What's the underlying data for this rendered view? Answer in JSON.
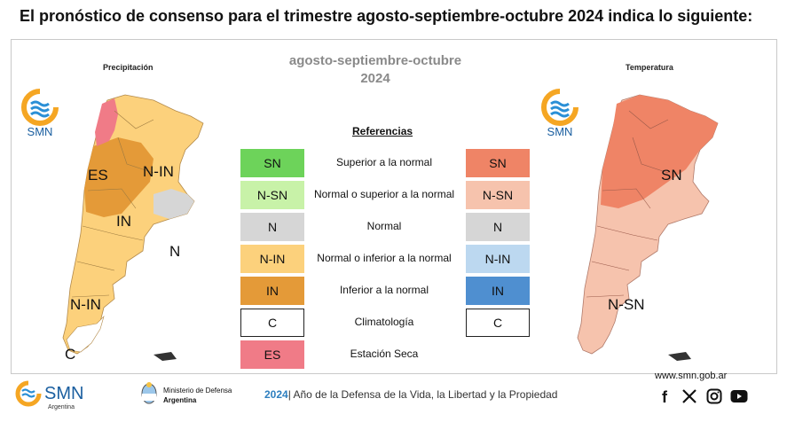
{
  "headline": "El pronóstico de consenso para el trimestre agosto-septiembre-octubre 2024 indica lo siguiente:",
  "period": {
    "line1": "agosto-septiembre-octubre",
    "line2": "2024"
  },
  "left_map": {
    "title": "Precipitación",
    "labels": [
      "ES",
      "N-IN",
      "IN",
      "N",
      "N-IN",
      "C"
    ]
  },
  "right_map": {
    "title": "Temperatura",
    "labels": [
      "SN",
      "N-SN"
    ]
  },
  "logo_text": "SMN",
  "references": {
    "title": "Referencias",
    "rows": [
      {
        "label": "Superior a la normal",
        "precip_code": "SN",
        "precip_color": "#6dd35a",
        "temp_code": "SN",
        "temp_color": "#ef8466"
      },
      {
        "label": "Normal o superior a la normal",
        "precip_code": "N-SN",
        "precip_color": "#c8f2a8",
        "temp_code": "N-SN",
        "temp_color": "#f6c3ad"
      },
      {
        "label": "Normal",
        "precip_code": "N",
        "precip_color": "#d6d6d6",
        "temp_code": "N",
        "temp_color": "#d6d6d6"
      },
      {
        "label": "Normal o inferior a la normal",
        "precip_code": "N-IN",
        "precip_color": "#fcd17c",
        "temp_code": "N-IN",
        "temp_color": "#bcd8f0"
      },
      {
        "label": "Inferior a la normal",
        "precip_code": "IN",
        "precip_color": "#e49a38",
        "temp_code": "IN",
        "temp_color": "#4f8fd0"
      },
      {
        "label": "Climatología",
        "precip_code": "C",
        "precip_color": "#ffffff",
        "temp_code": "C",
        "temp_color": "#ffffff"
      },
      {
        "label": "Estación Seca",
        "precip_code": "ES",
        "precip_color": "#f07b87"
      }
    ]
  },
  "footer": {
    "smn": "SMN",
    "smn_sub": "Argentina",
    "ministry_line1": "Ministerio de Defensa",
    "ministry_line2": "Argentina",
    "year": "2024",
    "motto": "| Año de la Defensa de la Vida, la Libertad y la Propiedad",
    "url": "www.smn.gob.ar"
  },
  "colors": {
    "accent": "#2e7fbf",
    "logo_orange": "#f5a623",
    "logo_blue": "#2a8fd6"
  },
  "icons": [
    "smn-logo-icon",
    "ministry-emblem-icon",
    "facebook-icon",
    "x-icon",
    "instagram-icon",
    "youtube-icon"
  ]
}
